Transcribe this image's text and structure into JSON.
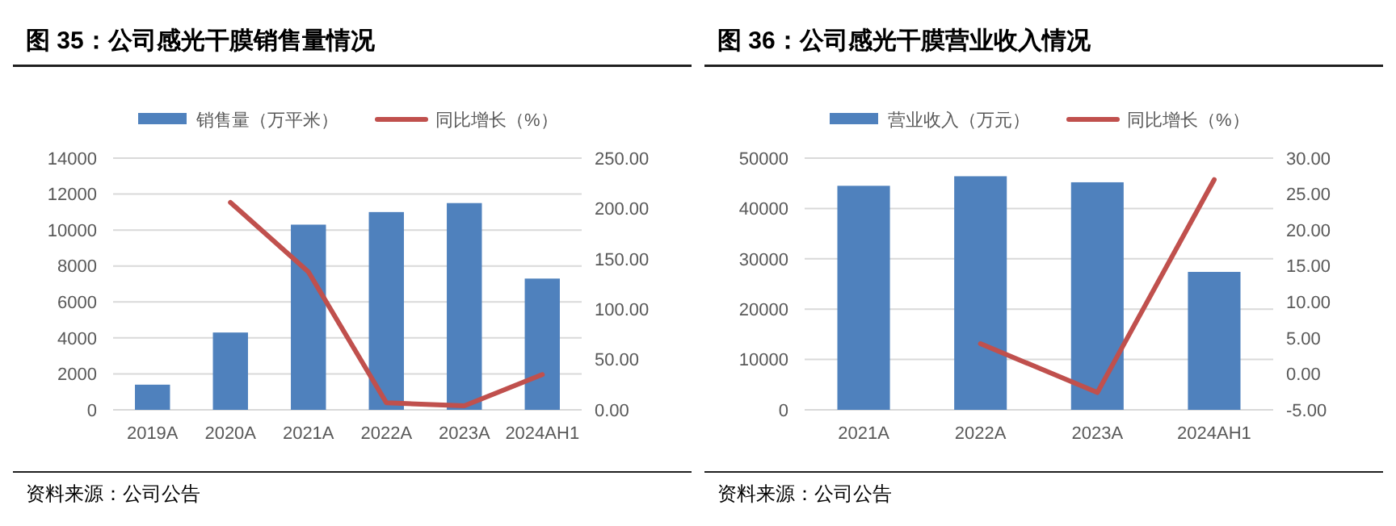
{
  "chart_data": [
    {
      "type": "bar",
      "title": "图 35：公司感光干膜销售量情况",
      "categories": [
        "2019A",
        "2020A",
        "2021A",
        "2022A",
        "2023A",
        "2024AH1"
      ],
      "series": [
        {
          "name": "销售量（万平米）",
          "color": "#4f81bd",
          "values": [
            1400,
            4300,
            10300,
            11000,
            11500,
            7300
          ]
        },
        {
          "name": "同比增长（%）",
          "type": "line",
          "axis": "y2",
          "color": "#c0504d",
          "values": [
            null,
            206,
            137,
            7,
            4,
            35
          ]
        }
      ],
      "ylim": [
        0,
        14000
      ],
      "yticks": [
        0,
        2000,
        4000,
        6000,
        8000,
        10000,
        12000,
        14000
      ],
      "y2lim": [
        0,
        250
      ],
      "y2ticks": [
        {
          "value": 0,
          "label": "0.00"
        },
        {
          "value": 50,
          "label": "50.00"
        },
        {
          "value": 100,
          "label": "100.00"
        },
        {
          "value": 150,
          "label": "150.00"
        },
        {
          "value": 200,
          "label": "200.00"
        },
        {
          "value": 250,
          "label": "250.00"
        }
      ],
      "grid": "y",
      "legend": "top",
      "marker": "none",
      "annotations": [
        "资料来源：公司公告"
      ]
    },
    {
      "type": "bar",
      "title": "图 36：公司感光干膜营业收入情况",
      "categories": [
        "2021A",
        "2022A",
        "2023A",
        "2024AH1"
      ],
      "series": [
        {
          "name": "营业收入（万元）",
          "color": "#4f81bd",
          "values": [
            44500,
            46400,
            45200,
            27400
          ]
        },
        {
          "name": "同比增长（%）",
          "type": "line",
          "axis": "y2",
          "color": "#c0504d",
          "values": [
            null,
            4.2,
            -2.6,
            27
          ]
        }
      ],
      "ylim": [
        0,
        50000
      ],
      "yticks": [
        0,
        10000,
        20000,
        30000,
        40000,
        50000
      ],
      "y2lim": [
        -5,
        30
      ],
      "y2ticks": [
        {
          "value": -5,
          "label": "-5.00"
        },
        {
          "value": 0,
          "label": "0.00"
        },
        {
          "value": 5,
          "label": "5.00"
        },
        {
          "value": 10,
          "label": "10.00"
        },
        {
          "value": 15,
          "label": "15.00"
        },
        {
          "value": 20,
          "label": "20.00"
        },
        {
          "value": 25,
          "label": "25.00"
        },
        {
          "value": 30,
          "label": "30.00"
        }
      ],
      "grid": "y",
      "legend": "top",
      "marker": "none",
      "annotations": [
        "资料来源：公司公告"
      ]
    }
  ]
}
